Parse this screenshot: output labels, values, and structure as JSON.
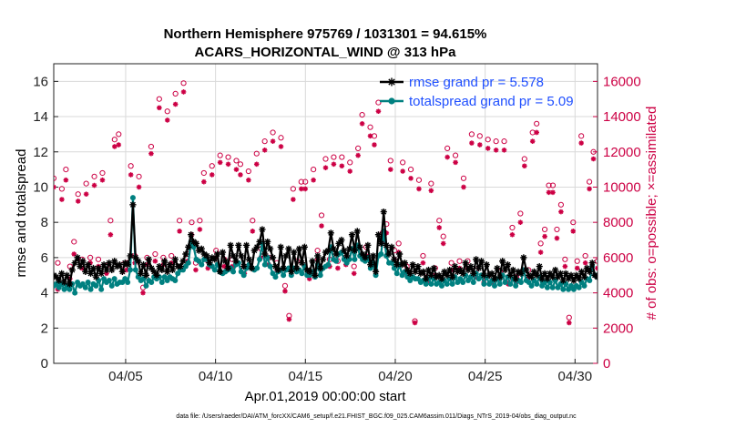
{
  "chart_data": {
    "type": "line",
    "title_line1": "Northern Hemisphere 975769 / 1031301 = 94.615%",
    "title_line2": "ACARS_HORIZONTAL_WIND @ 313 hPa",
    "xlabel": "Apr.01,2019 00:00:00 start",
    "ylabel_left": "rmse and totalspread",
    "ylabel_right": "# of obs: o=possible; ×=assimilated",
    "footnote": "data file: /Users/raeder/DAI/ATM_forcXX/CAM6_setup/f.e21.FHIST_BGC.f09_025.CAM6assim.011/Diags_NTrS_2019-04/obs_diag_output.nc",
    "x_unit": "days since 2019-04-01",
    "xlim": [
      0.0,
      30.25
    ],
    "ylim_left": [
      0,
      17
    ],
    "ylim_right": [
      0,
      17000
    ],
    "yticks_left": [
      0,
      2,
      4,
      6,
      8,
      10,
      12,
      14,
      16
    ],
    "yticks_right": [
      0,
      2000,
      4000,
      6000,
      8000,
      10000,
      12000,
      14000,
      16000
    ],
    "xticks": [
      {
        "x": 4,
        "label": "04/05"
      },
      {
        "x": 9,
        "label": "04/10"
      },
      {
        "x": 14,
        "label": "04/15"
      },
      {
        "x": 19,
        "label": "04/20"
      },
      {
        "x": 24,
        "label": "04/25"
      },
      {
        "x": 29,
        "label": "04/30"
      }
    ],
    "grid": true,
    "legend_position": "top-right",
    "series": [
      {
        "name": "rmse grand pr = 5.578",
        "color": "#000000",
        "marker": "star",
        "axis": "left",
        "values": [
          5.0,
          4.9,
          4.7,
          5.1,
          4.6,
          5.0,
          4.5,
          5.3,
          5.7,
          6.0,
          5.5,
          5.8,
          5.2,
          5.6,
          5.1,
          5.4,
          4.9,
          5.4,
          5.1,
          5.6,
          5.3,
          5.7,
          5.3,
          5.8,
          5.5,
          5.6,
          5.2,
          5.7,
          5.6,
          6.1,
          9.0,
          6.0,
          5.8,
          5.1,
          5.6,
          5.0,
          5.9,
          5.4,
          5.2,
          5.0,
          5.5,
          5.3,
          5.8,
          5.2,
          5.6,
          5.3,
          5.9,
          5.5,
          5.5,
          5.8,
          6.2,
          6.6,
          7.3,
          6.9,
          6.8,
          6.4,
          6.5,
          6.2,
          6.1,
          5.7,
          6.0,
          5.9,
          6.2,
          5.2,
          6.3,
          5.8,
          5.4,
          6.7,
          6.1,
          5.8,
          6.7,
          6.1,
          5.5,
          6.7,
          5.9,
          5.4,
          6.4,
          6.6,
          6.9,
          7.6,
          6.2,
          6.9,
          6.5,
          6.0,
          5.5,
          5.3,
          6.6,
          5.4,
          6.1,
          6.5,
          5.2,
          6.3,
          5.4,
          6.5,
          5.7,
          6.6,
          5.3,
          5.2,
          5.8,
          5.0,
          6.1,
          5.4,
          5.9,
          6.3,
          6.4,
          7.4,
          6.5,
          6.2,
          6.8,
          7.0,
          6.4,
          6.1,
          6.5,
          7.3,
          6.4,
          7.5,
          6.6,
          6.2,
          6.0,
          6.7,
          5.6,
          6.1,
          5.2,
          7.3,
          6.8,
          8.6,
          6.7,
          6.2,
          6.6,
          5.9,
          5.6,
          6.2,
          5.6,
          5.7,
          5.3,
          5.1,
          5.6,
          5.2,
          5.5,
          5.1,
          5.2,
          4.8,
          5.3,
          5.0,
          5.4,
          4.9,
          5.0,
          4.8,
          5.2,
          5.0,
          5.3,
          4.9,
          5.5,
          5.2,
          5.3,
          5.1,
          5.7,
          5.3,
          5.5,
          5.1,
          5.9,
          5.4,
          5.8,
          5.0,
          5.6,
          5.0,
          5.1,
          4.8,
          5.4,
          4.9,
          5.8,
          5.3,
          5.6,
          5.0,
          5.3,
          4.8,
          5.2,
          5.1,
          6.0,
          5.3,
          5.0,
          4.9,
          5.2,
          5.0,
          5.5,
          4.8,
          5.1,
          4.8,
          5.1,
          4.9,
          5.3,
          4.9,
          5.1,
          4.7,
          5.1,
          4.8,
          5.0,
          4.7,
          5.0,
          4.8,
          5.2,
          4.9,
          5.4,
          5.2,
          5.7,
          5.0,
          4.9
        ]
      },
      {
        "name": "totalspread grand pr = 5.09",
        "color": "#008080",
        "marker": "dot",
        "axis": "left",
        "values": [
          4.4,
          4.5,
          4.3,
          4.5,
          4.2,
          4.4,
          4.2,
          4.5,
          4.0,
          4.6,
          4.4,
          4.5,
          4.3,
          4.6,
          4.2,
          4.5,
          4.4,
          4.7,
          4.2,
          4.8,
          4.6,
          4.7,
          4.4,
          4.8,
          4.5,
          4.6,
          4.6,
          4.8,
          4.6,
          5.3,
          9.4,
          5.3,
          4.9,
          4.7,
          4.8,
          4.4,
          4.7,
          4.6,
          4.9,
          4.8,
          4.9,
          4.6,
          4.9,
          4.7,
          4.9,
          4.8,
          4.7,
          5.1,
          5.3,
          5.3,
          5.5,
          5.7,
          6.9,
          6.6,
          5.9,
          5.8,
          5.6,
          5.9,
          5.9,
          5.6,
          5.5,
          5.3,
          5.6,
          5.2,
          5.1,
          5.2,
          5.3,
          5.4,
          5.2,
          5.6,
          5.7,
          5.2,
          5.0,
          5.4,
          5.6,
          5.4,
          5.3,
          5.4,
          5.9,
          6.8,
          5.6,
          6.0,
          5.5,
          5.1,
          4.9,
          5.2,
          5.3,
          5.0,
          5.3,
          5.4,
          5.0,
          5.4,
          5.2,
          5.3,
          5.1,
          5.5,
          5.0,
          5.0,
          5.2,
          4.9,
          5.6,
          5.0,
          5.4,
          5.5,
          5.6,
          6.6,
          5.9,
          5.8,
          6.2,
          6.3,
          5.9,
          5.7,
          5.9,
          6.5,
          5.9,
          6.7,
          6.1,
          5.9,
          5.8,
          6.0,
          5.4,
          5.7,
          5.0,
          6.1,
          6.2,
          7.5,
          6.1,
          5.7,
          5.7,
          5.4,
          5.1,
          5.6,
          5.0,
          5.2,
          4.9,
          4.7,
          4.9,
          4.8,
          4.8,
          4.6,
          4.7,
          4.5,
          4.8,
          4.5,
          4.8,
          4.5,
          4.6,
          4.4,
          4.7,
          4.5,
          4.8,
          4.5,
          4.9,
          4.6,
          4.8,
          4.6,
          5.0,
          4.7,
          4.9,
          4.6,
          5.1,
          4.8,
          5.0,
          4.5,
          4.9,
          4.5,
          4.7,
          4.4,
          4.8,
          4.5,
          5.0,
          4.6,
          4.9,
          4.5,
          4.8,
          4.4,
          4.7,
          4.6,
          5.3,
          4.7,
          4.6,
          4.4,
          4.7,
          4.5,
          4.9,
          4.4,
          4.6,
          4.3,
          4.6,
          4.3,
          4.7,
          4.3,
          4.5,
          4.2,
          4.5,
          4.2,
          4.4,
          4.2,
          4.4,
          4.3,
          4.6,
          4.4,
          4.8,
          4.7,
          5.5,
          5.0,
          4.9
        ]
      },
      {
        "name": "possible obs",
        "color": "#cc0044",
        "marker": "circle",
        "axis": "right",
        "values": [
          10500,
          5700,
          9900,
          11000,
          5500,
          6900,
          9600,
          5900,
          10200,
          6000,
          10600,
          5900,
          10800,
          5500,
          8100,
          12700,
          13000,
          5600,
          5700,
          11200,
          6100,
          10600,
          4300,
          6000,
          12300,
          6200,
          15000,
          6000,
          14300,
          6100,
          15300,
          8100,
          15900,
          6200,
          8000,
          5700,
          8100,
          10800,
          5800,
          11200,
          6400,
          11800,
          5900,
          11700,
          5900,
          11500,
          11300,
          5500,
          10900,
          8100,
          11900,
          6500,
          12600,
          6000,
          13100,
          5700,
          12800,
          4400,
          2700,
          9900,
          5800,
          10300,
          10300,
          5200,
          11000,
          6400,
          8400,
          11600,
          5900,
          11700,
          5800,
          11700,
          6000,
          11400,
          5500,
          12200,
          14100,
          6600,
          13400,
          12900,
          14800,
          7400,
          7900,
          11500,
          6400,
          6800,
          11400,
          5500,
          11000,
          2400,
          10400,
          6100,
          4900,
          10200,
          5400,
          8100,
          7200,
          12200,
          5700,
          11800,
          5800,
          10500,
          5800,
          13000,
          5300,
          12900,
          4900,
          12700,
          4900,
          12600,
          5200,
          12600,
          4800,
          7700,
          4900,
          8500,
          11600,
          5300,
          13100,
          13600,
          6800,
          7600,
          10100,
          10100,
          7600,
          9000,
          5900,
          2600,
          8000,
          5800,
          12900,
          6100,
          10300,
          12000,
          5800
        ]
      },
      {
        "name": "assimilated obs",
        "color": "#cc0044",
        "marker": "asterisk",
        "axis": "right",
        "values": [
          10000,
          4200,
          9300,
          10400,
          4800,
          6200,
          9200,
          5400,
          9600,
          5700,
          10100,
          5500,
          10400,
          5100,
          7300,
          12300,
          12400,
          5200,
          5300,
          10700,
          5700,
          10000,
          4000,
          5600,
          11900,
          5800,
          14500,
          5600,
          13800,
          5700,
          14700,
          7500,
          15400,
          5800,
          7300,
          5300,
          7600,
          10300,
          5400,
          10700,
          6000,
          11400,
          5500,
          11300,
          5500,
          11000,
          10700,
          5100,
          10400,
          7500,
          11300,
          6000,
          12100,
          5600,
          12600,
          5300,
          12300,
          4100,
          2500,
          9300,
          5300,
          9900,
          9900,
          4800,
          10400,
          5900,
          7800,
          11100,
          5500,
          11300,
          5400,
          11200,
          5600,
          10900,
          5100,
          11800,
          13600,
          6100,
          12900,
          12400,
          14300,
          6900,
          7400,
          11000,
          5900,
          6300,
          10900,
          5100,
          10500,
          2300,
          9900,
          5700,
          4600,
          9800,
          5000,
          7700,
          6800,
          11700,
          5300,
          11400,
          5400,
          10000,
          5400,
          12500,
          4900,
          12400,
          4600,
          12200,
          4600,
          12100,
          4800,
          12100,
          4500,
          7300,
          4600,
          8000,
          11200,
          4900,
          12600,
          13100,
          6300,
          7200,
          9700,
          9700,
          7100,
          8600,
          5500,
          2300,
          7500,
          5400,
          12500,
          5700,
          9900,
          11600,
          5400
        ]
      }
    ]
  }
}
